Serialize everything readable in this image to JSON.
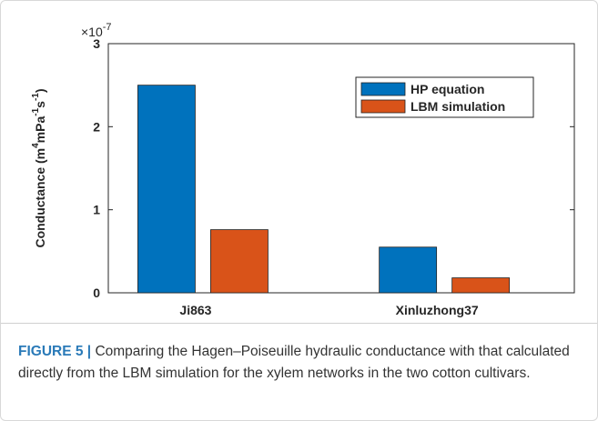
{
  "chart_data": {
    "type": "bar",
    "axis_multiplier": "×10",
    "axis_multiplier_exponent": "-7",
    "ylabel": [
      "Conductance (m",
      "4",
      "mPa",
      "-1",
      "s",
      "-1",
      ")"
    ],
    "categories": [
      "Ji863",
      "Xinluzhong37"
    ],
    "series": [
      {
        "name": "HP equation",
        "color": "#0072bd",
        "values": [
          2.5,
          0.55
        ]
      },
      {
        "name": "LBM simulation",
        "color": "#d95319",
        "values": [
          0.76,
          0.18
        ]
      }
    ],
    "ylim": [
      0,
      3
    ],
    "yticks": [
      0,
      1,
      2,
      3
    ],
    "legend": "northeast"
  },
  "caption": {
    "label": "FIGURE 5 |",
    "text": "Comparing the Hagen–Poiseuille hydraulic conductance with that calculated directly from the LBM simulation for the xylem networks in the two cotton cultivars."
  }
}
